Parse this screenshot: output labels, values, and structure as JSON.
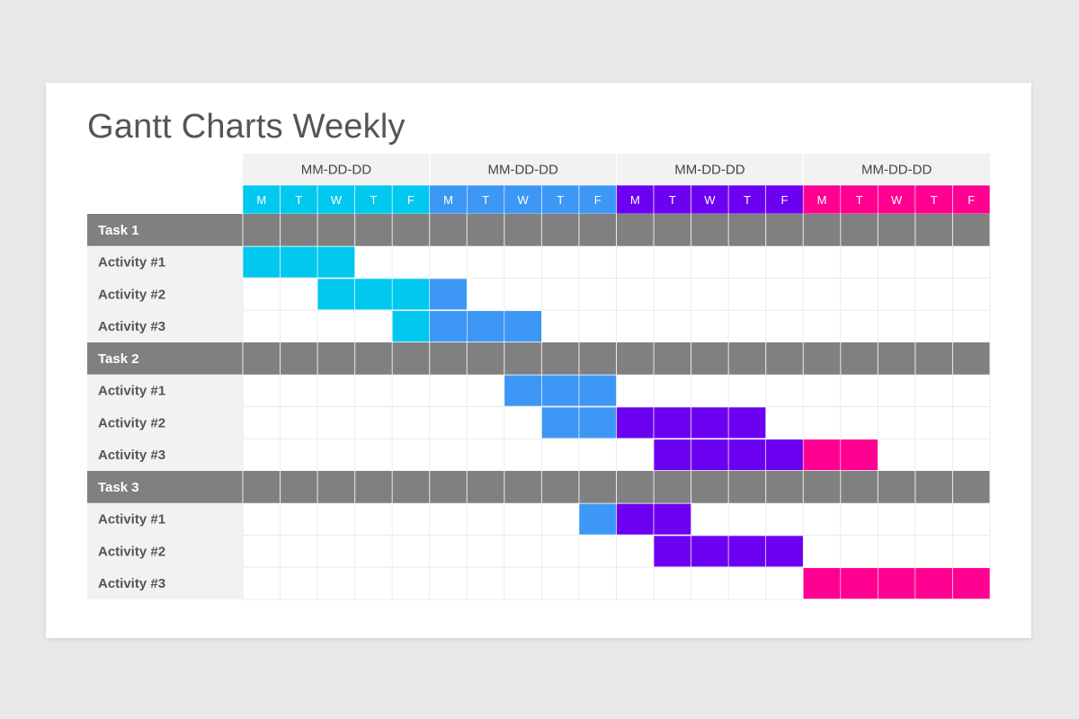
{
  "title": "Gantt Charts Weekly",
  "colors": {
    "week_1": "#00c8ef",
    "week_2": "#3d97f5",
    "week_3": "#6c00f0",
    "week_4": "#ff0090",
    "task_bar": "#808080",
    "label_bg": "#f2f2f2",
    "week_header_bg": "#f2f2f2",
    "grid_line": "#ebebeb"
  },
  "chart_data": {
    "type": "gantt",
    "weeks": [
      {
        "label": "MM-DD-DD",
        "color": "#00c8ef"
      },
      {
        "label": "MM-DD-DD",
        "color": "#3d97f5"
      },
      {
        "label": "MM-DD-DD",
        "color": "#6c00f0"
      },
      {
        "label": "MM-DD-DD",
        "color": "#ff0090"
      }
    ],
    "days": [
      "M",
      "T",
      "W",
      "T",
      "F"
    ],
    "tasks": [
      {
        "name": "Task 1",
        "activities": [
          {
            "name": "Activity #1",
            "start_day": 1,
            "end_day": 3
          },
          {
            "name": "Activity #2",
            "start_day": 3,
            "end_day": 6
          },
          {
            "name": "Activity #3",
            "start_day": 5,
            "end_day": 8
          }
        ]
      },
      {
        "name": "Task 2",
        "activities": [
          {
            "name": "Activity #1",
            "start_day": 8,
            "end_day": 10
          },
          {
            "name": "Activity #2",
            "start_day": 9,
            "end_day": 14
          },
          {
            "name": "Activity #3",
            "start_day": 12,
            "end_day": 17
          }
        ]
      },
      {
        "name": "Task 3",
        "activities": [
          {
            "name": "Activity #1",
            "start_day": 10,
            "end_day": 12
          },
          {
            "name": "Activity #2",
            "start_day": 12,
            "end_day": 15
          },
          {
            "name": "Activity #3",
            "start_day": 16,
            "end_day": 20
          }
        ]
      }
    ]
  }
}
